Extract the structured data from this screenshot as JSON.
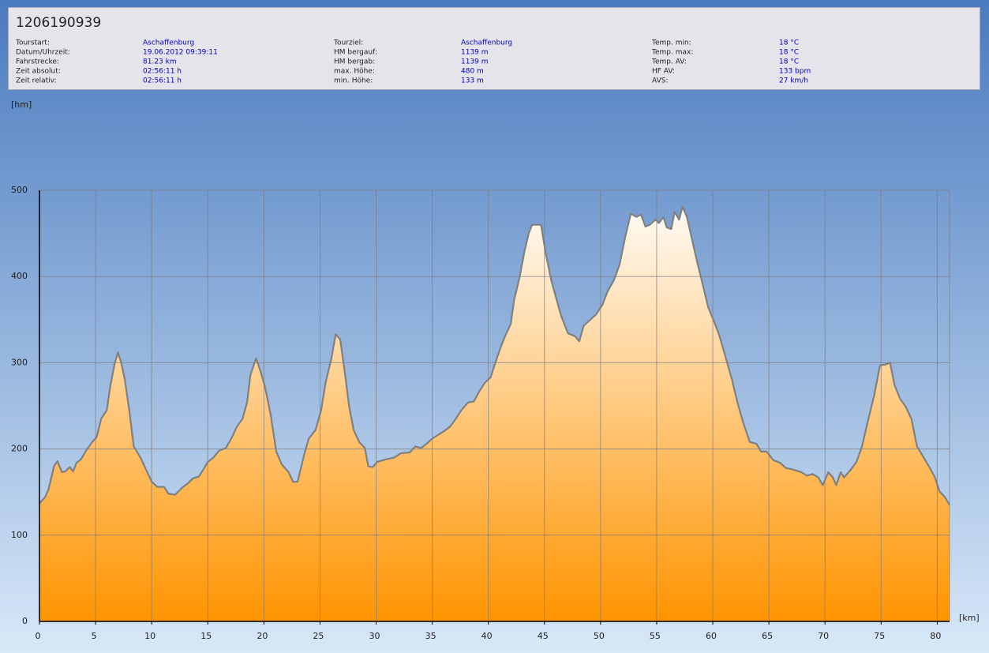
{
  "header": {
    "title": "1206190939",
    "info": [
      [
        {
          "label": "Tourstart:",
          "value": "Aschaffenburg"
        },
        {
          "label": "Datum/Uhrzeit:",
          "value": "19.06.2012 09:39:11"
        },
        {
          "label": "Fahrstrecke:",
          "value": "81.23 km"
        },
        {
          "label": "Zeit absolut:",
          "value": "02:56:11 h"
        },
        {
          "label": "Zeit relativ:",
          "value": "02:56:11 h"
        }
      ],
      [
        {
          "label": "Tourziel:",
          "value": "Aschaffenburg"
        },
        {
          "label": "HM bergauf:",
          "value": "1139 m"
        },
        {
          "label": "HM bergab:",
          "value": "1139 m"
        },
        {
          "label": "max. Höhe:",
          "value": "480 m"
        },
        {
          "label": "min. Höhe:",
          "value": "133 m"
        }
      ],
      [
        {
          "label": "Temp. min:",
          "value": "18 °C"
        },
        {
          "label": "Temp. max:",
          "value": "18 °C"
        },
        {
          "label": "Temp. AV:",
          "value": "18 °C"
        },
        {
          "label": "HF AV:",
          "value": "133 bpm"
        },
        {
          "label": "AVS:",
          "value": "27 km/h"
        }
      ]
    ]
  },
  "chart_data": {
    "type": "area",
    "y_label": "[hm]",
    "x_label": "[km]",
    "x": [
      0,
      0.5,
      0.8,
      1.3,
      1.6,
      2,
      2.3,
      2.7,
      3,
      3.3,
      3.7,
      4.2,
      4.7,
      5.1,
      5.5,
      6,
      6.3,
      6.7,
      7,
      7.3,
      7.6,
      8,
      8.4,
      9,
      9.5,
      10,
      10.5,
      11.1,
      11.5,
      12.1,
      12.7,
      13.2,
      13.7,
      14.2,
      14.6,
      15,
      15.5,
      16,
      16.6,
      17.1,
      17.6,
      18.1,
      18.5,
      18.8,
      19.3,
      19.7,
      20.1,
      20.6,
      21.1,
      21.6,
      22.2,
      22.6,
      23,
      23.6,
      24,
      24.6,
      25.1,
      25.5,
      26,
      26.4,
      26.8,
      27.2,
      27.6,
      28,
      28.5,
      29,
      29.3,
      29.7,
      30.1,
      30.9,
      31.6,
      32.2,
      33,
      33.5,
      34,
      34.5,
      35,
      35.6,
      36.1,
      36.6,
      37.1,
      37.6,
      38.2,
      38.7,
      39.2,
      39.7,
      40.2,
      40.6,
      41.1,
      41.5,
      42,
      42.3,
      42.8,
      43.2,
      43.6,
      43.9,
      44.3,
      44.7,
      45.1,
      45.6,
      46,
      46.5,
      47.1,
      47.7,
      48.1,
      48.5,
      49.1,
      49.6,
      50.2,
      50.6,
      51.2,
      51.7,
      52.2,
      52.7,
      53.2,
      53.6,
      54,
      54.4,
      54.9,
      55.2,
      55.6,
      55.9,
      56.3,
      56.6,
      57,
      57.3,
      57.7,
      58.1,
      58.5,
      59.1,
      59.6,
      60.2,
      60.6,
      61.2,
      61.7,
      62.2,
      62.7,
      63.3,
      63.9,
      64.3,
      64.8,
      65.4,
      66,
      66.5,
      67.2,
      67.9,
      68.4,
      68.9,
      69.4,
      69.8,
      70.3,
      70.7,
      71,
      71.4,
      71.7,
      72.3,
      72.8,
      73.3,
      73.8,
      74.4,
      74.9,
      75.4,
      75.8,
      76.2,
      76.7,
      77.2,
      77.7,
      78.2,
      78.8,
      79.3,
      79.8,
      80.2,
      80.7,
      81.1
    ],
    "values": [
      137,
      144,
      153,
      180,
      186,
      173,
      174,
      179,
      174,
      184,
      188,
      199,
      208,
      214,
      235,
      245,
      272,
      299,
      312,
      299,
      281,
      245,
      203,
      190,
      176,
      162,
      156,
      156,
      148,
      147,
      155,
      160,
      166,
      168,
      176,
      185,
      190,
      198,
      201,
      212,
      226,
      235,
      254,
      286,
      305,
      290,
      272,
      240,
      197,
      182,
      173,
      162,
      162,
      194,
      212,
      222,
      245,
      277,
      304,
      333,
      327,
      290,
      249,
      222,
      208,
      201,
      180,
      179,
      185,
      188,
      190,
      195,
      196,
      203,
      201,
      206,
      212,
      217,
      221,
      226,
      235,
      245,
      254,
      255,
      267,
      277,
      283,
      299,
      318,
      331,
      345,
      373,
      400,
      428,
      450,
      460,
      460,
      460,
      428,
      396,
      377,
      354,
      334,
      331,
      325,
      343,
      350,
      356,
      368,
      382,
      396,
      414,
      446,
      473,
      469,
      472,
      458,
      460,
      466,
      462,
      469,
      457,
      455,
      475,
      466,
      481,
      469,
      446,
      423,
      391,
      364,
      345,
      331,
      304,
      281,
      254,
      231,
      208,
      206,
      197,
      197,
      187,
      184,
      178,
      176,
      173,
      169,
      171,
      167,
      158,
      173,
      167,
      158,
      173,
      167,
      176,
      185,
      203,
      231,
      263,
      297,
      298,
      300,
      274,
      258,
      249,
      235,
      203,
      190,
      179,
      167,
      151,
      144,
      135
    ],
    "color": "#808080",
    "fill_top": "#ffffff",
    "fill_bottom": "#ff9400",
    "xlim": [
      0,
      81.1
    ],
    "ylim": [
      0,
      500
    ],
    "xticks": [
      0,
      5,
      10,
      15,
      20,
      25,
      30,
      35,
      40,
      45,
      50,
      55,
      60,
      65,
      70,
      75,
      80
    ],
    "yticks": [
      0,
      100,
      200,
      300,
      400,
      500
    ],
    "grid": true
  }
}
